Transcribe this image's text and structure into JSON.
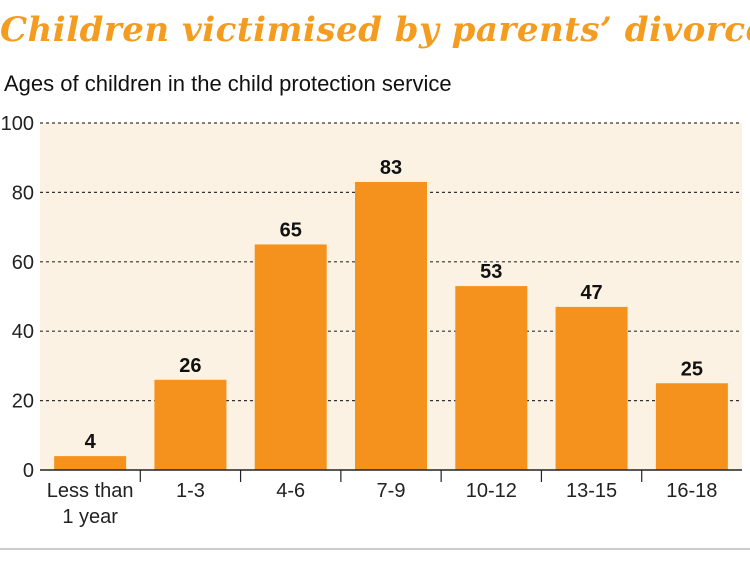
{
  "header": {
    "title": "Children victimised by parents’ divorce",
    "subtitle": "Ages of children in the child protection service"
  },
  "colors": {
    "bar": "#f5921e",
    "plot_bg": "#fcf2e3",
    "title": "#f39c1f",
    "grid": "#333333"
  },
  "chart_data": {
    "type": "bar",
    "title": "Children victimised by parents’ divorce",
    "subtitle": "Ages of children in the child protection service",
    "categories": [
      [
        "Less than",
        "1 year"
      ],
      [
        "1-3"
      ],
      [
        "4-6"
      ],
      [
        "7-9"
      ],
      [
        "10-12"
      ],
      [
        "13-15"
      ],
      [
        "16-18"
      ]
    ],
    "values": [
      4,
      26,
      65,
      83,
      53,
      47,
      25
    ],
    "ylim": [
      0,
      100
    ],
    "yticks": [
      0,
      20,
      40,
      60,
      80,
      100
    ],
    "xlabel": "",
    "ylabel": "",
    "grid": true
  }
}
